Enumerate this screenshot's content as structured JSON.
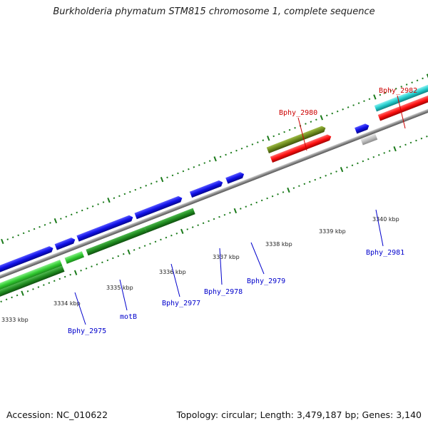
{
  "title": "Burkholderia phymatum STM815 chromosome 1, complete sequence",
  "footer": {
    "accession": "Accession: NC_010622",
    "summary": "Topology: circular; Length: 3,479,187 bp; Genes: 3,140"
  },
  "colors": {
    "forward_cds": "#1010e8",
    "reverse_cds": "#1f8a1f",
    "reverse_cds_light": "#33cc33",
    "olive": "#6e8c1e",
    "red": "#ff1010",
    "cyan": "#22cccc",
    "grey": "#c0c0c0",
    "backbone": "#888888",
    "tick": "#1a7a1a",
    "label_blue": "#0000cc",
    "label_red": "#cc0000"
  },
  "tick_labels": [
    "3333 kbp",
    "3334 kbp",
    "3335 kbp",
    "3336 kbp",
    "3337 kbp",
    "3338 kbp",
    "3339 kbp",
    "3340 kbp"
  ],
  "gene_labels": [
    {
      "name": "Bphy_2975",
      "color": "blue"
    },
    {
      "name": "motB",
      "color": "blue"
    },
    {
      "name": "Bphy_2977",
      "color": "blue"
    },
    {
      "name": "Bphy_2978",
      "color": "blue"
    },
    {
      "name": "Bphy_2979",
      "color": "blue"
    },
    {
      "name": "Bphy_2980",
      "color": "red"
    },
    {
      "name": "Bphy_2981",
      "color": "blue"
    },
    {
      "name": "Bphy_2982",
      "color": "red"
    }
  ]
}
